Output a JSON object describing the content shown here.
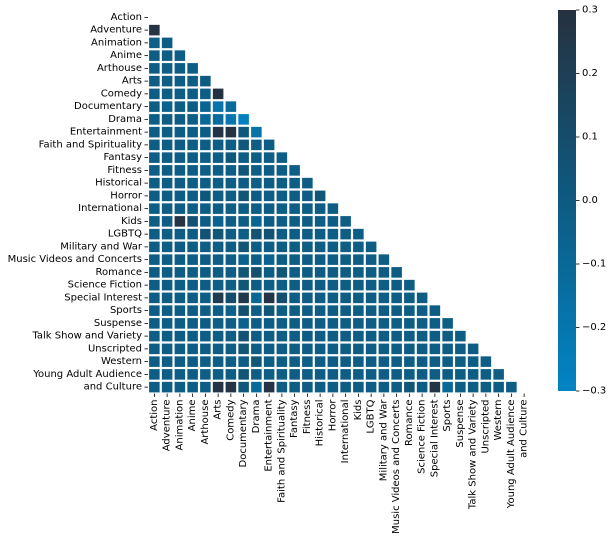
{
  "chart_data": {
    "type": "heatmap",
    "title": "",
    "xlabel": "",
    "ylabel": "",
    "row_labels": [
      "Action",
      "Adventure",
      "Animation",
      "Anime",
      "Arthouse",
      "Arts",
      "Comedy",
      "Documentary",
      "Drama",
      "Entertainment",
      "Faith and Spirituality",
      "Fantasy",
      "Fitness",
      "Historical",
      "Horror",
      "International",
      "Kids",
      "LGBTQ",
      "Military and War",
      "Music Videos and Concerts",
      "Romance",
      "Science Fiction",
      "Special Interest",
      "Sports",
      "Suspense",
      "Talk Show and Variety",
      "Unscripted",
      "Western",
      "Young Adult Audience",
      "and Culture"
    ],
    "col_labels": [
      "Action",
      "Adventure",
      "Animation",
      "Anime",
      "Arthouse",
      "Arts",
      "Comedy",
      "Documentary",
      "Drama",
      "Entertainment",
      "Faith and Spirituality",
      "Fantasy",
      "Fitness",
      "Historical",
      "Horror",
      "International",
      "Kids",
      "LGBTQ",
      "Military and War",
      "Music Videos and Concerts",
      "Romance",
      "Science Fiction",
      "Special Interest",
      "Sports",
      "Suspense",
      "Talk Show and Variety",
      "Unscripted",
      "Western",
      "Young Adult Audience",
      "and Culture"
    ],
    "mask": "lower-triangle",
    "default_value": -0.02,
    "cells": [
      {
        "r": 1,
        "c": 0,
        "v": 0.28
      },
      {
        "r": 2,
        "c": 0,
        "v": -0.04
      },
      {
        "r": 5,
        "c": 4,
        "v": -0.01
      },
      {
        "r": 6,
        "c": 5,
        "v": 0.29
      },
      {
        "r": 7,
        "c": 1,
        "v": -0.06
      },
      {
        "r": 7,
        "c": 4,
        "v": -0.08
      },
      {
        "r": 7,
        "c": 5,
        "v": -0.18
      },
      {
        "r": 7,
        "c": 6,
        "v": -0.12
      },
      {
        "r": 8,
        "c": 4,
        "v": -0.1
      },
      {
        "r": 8,
        "c": 5,
        "v": -0.12
      },
      {
        "r": 8,
        "c": 6,
        "v": -0.2
      },
      {
        "r": 8,
        "c": 7,
        "v": -0.28
      },
      {
        "r": 9,
        "c": 5,
        "v": 0.28
      },
      {
        "r": 9,
        "c": 6,
        "v": 0.29
      },
      {
        "r": 9,
        "c": 7,
        "v": 0.02
      },
      {
        "r": 9,
        "c": 8,
        "v": -0.18
      },
      {
        "r": 10,
        "c": 7,
        "v": 0.02
      },
      {
        "r": 11,
        "c": 6,
        "v": 0.02
      },
      {
        "r": 12,
        "c": 7,
        "v": 0.03
      },
      {
        "r": 14,
        "c": 4,
        "v": 0.02
      },
      {
        "r": 14,
        "c": 7,
        "v": 0.04
      },
      {
        "r": 14,
        "c": 13,
        "v": 0.04
      },
      {
        "r": 16,
        "c": 2,
        "v": 0.28
      },
      {
        "r": 16,
        "c": 3,
        "v": 0.06
      },
      {
        "r": 16,
        "c": 5,
        "v": -0.06
      },
      {
        "r": 16,
        "c": 8,
        "v": -0.08
      },
      {
        "r": 17,
        "c": 4,
        "v": 0.06
      },
      {
        "r": 17,
        "c": 5,
        "v": 0.04
      },
      {
        "r": 17,
        "c": 8,
        "v": 0.06
      },
      {
        "r": 17,
        "c": 9,
        "v": 0.06
      },
      {
        "r": 18,
        "c": 7,
        "v": 0.04
      },
      {
        "r": 19,
        "c": 7,
        "v": -0.06
      },
      {
        "r": 19,
        "c": 9,
        "v": -0.06
      },
      {
        "r": 20,
        "c": 7,
        "v": 0.04
      },
      {
        "r": 20,
        "c": 8,
        "v": 0.08
      },
      {
        "r": 20,
        "c": 10,
        "v": 0.04
      },
      {
        "r": 21,
        "c": 7,
        "v": 0.04
      },
      {
        "r": 22,
        "c": 5,
        "v": 0.22
      },
      {
        "r": 22,
        "c": 6,
        "v": 0.1
      },
      {
        "r": 22,
        "c": 7,
        "v": 0.25
      },
      {
        "r": 22,
        "c": 8,
        "v": -0.1
      },
      {
        "r": 22,
        "c": 9,
        "v": 0.28
      },
      {
        "r": 22,
        "c": 10,
        "v": 0.08
      },
      {
        "r": 23,
        "c": 6,
        "v": -0.04
      },
      {
        "r": 23,
        "c": 7,
        "v": 0.08
      },
      {
        "r": 23,
        "c": 9,
        "v": 0.04
      },
      {
        "r": 24,
        "c": 7,
        "v": -0.06
      },
      {
        "r": 25,
        "c": 7,
        "v": 0.06
      },
      {
        "r": 26,
        "c": 7,
        "v": 0.04
      },
      {
        "r": 27,
        "c": 8,
        "v": 0.04
      },
      {
        "r": 28,
        "c": 7,
        "v": 0.04
      },
      {
        "r": 29,
        "c": 5,
        "v": 0.28
      },
      {
        "r": 29,
        "c": 6,
        "v": 0.28
      },
      {
        "r": 29,
        "c": 7,
        "v": 0.02
      },
      {
        "r": 29,
        "c": 8,
        "v": -0.12
      },
      {
        "r": 29,
        "c": 9,
        "v": 0.28
      },
      {
        "r": 29,
        "c": 20,
        "v": 0.04
      },
      {
        "r": 29,
        "c": 22,
        "v": 0.28
      },
      {
        "r": 29,
        "c": 23,
        "v": -0.1
      }
    ],
    "colorbar": {
      "min": -0.3,
      "max": 0.3,
      "ticks": [
        "0.3",
        "0.2",
        "0.1",
        "0.0",
        "−0.1",
        "−0.2",
        "−0.3"
      ],
      "colors": [
        "#0284c4",
        "#0e5a80",
        "#263140"
      ]
    },
    "grid": false,
    "legend": "colorbar-right"
  }
}
